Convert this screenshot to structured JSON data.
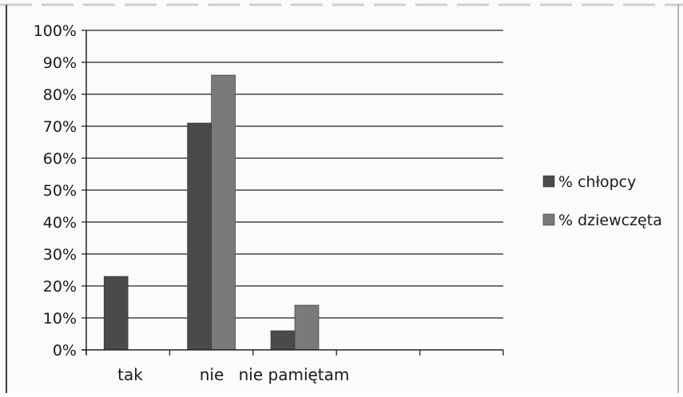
{
  "chart_data": {
    "type": "bar",
    "categories": [
      "tak",
      "nie",
      "nie pamiętam",
      "",
      ""
    ],
    "series": [
      {
        "name": "% chłopcy",
        "values": [
          23,
          71,
          6,
          null,
          null
        ]
      },
      {
        "name": "% dziewczęta",
        "values": [
          0,
          86,
          14,
          null,
          null
        ]
      }
    ],
    "title": "",
    "xlabel": "",
    "ylabel": "",
    "ylim": [
      0,
      100
    ],
    "yticks": [
      "0%",
      "10%",
      "20%",
      "30%",
      "40%",
      "50%",
      "60%",
      "70%",
      "80%",
      "90%",
      "100%"
    ],
    "grid": true,
    "legend_position": "right",
    "colors": {
      "chlopcy": "#4a4a4a",
      "dziewczeta": "#7a7a7a"
    }
  }
}
